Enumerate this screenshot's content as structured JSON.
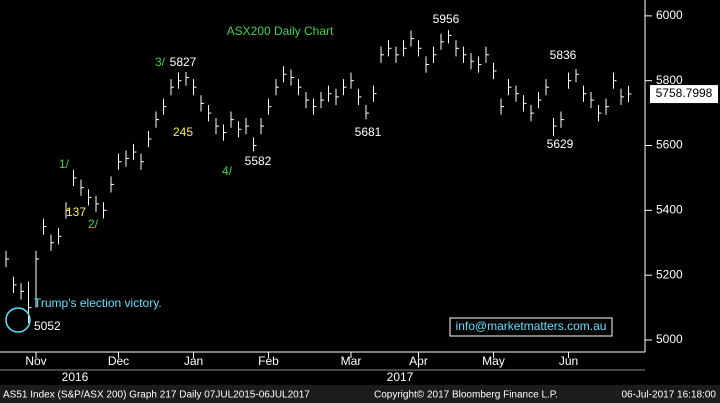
{
  "chart_data": {
    "type": "ohlc",
    "title": "ASX200 Daily Chart",
    "categories": [
      null,
      null,
      null,
      null,
      "Nov",
      null,
      null,
      null,
      null,
      null,
      null,
      null,
      null,
      null,
      null,
      "Dec",
      null,
      null,
      null,
      null,
      null,
      null,
      null,
      null,
      null,
      "Jan",
      null,
      null,
      null,
      null,
      null,
      null,
      null,
      null,
      null,
      "Feb",
      null,
      null,
      null,
      null,
      null,
      null,
      null,
      null,
      null,
      null,
      "Mar",
      null,
      null,
      null,
      null,
      null,
      null,
      null,
      null,
      "Apr",
      null,
      null,
      null,
      null,
      null,
      null,
      null,
      null,
      null,
      "May",
      null,
      null,
      null,
      null,
      null,
      null,
      null,
      null,
      null,
      "Jun",
      null,
      null,
      null,
      null,
      null,
      null,
      null,
      null
    ],
    "year_labels": [
      "2016",
      "2017"
    ],
    "high": [
      5275,
      5195,
      5175,
      5180,
      5275,
      5375,
      5325,
      5345,
      5425,
      5525,
      5495,
      5465,
      5445,
      5425,
      5505,
      5575,
      5585,
      5605,
      5575,
      5645,
      5705,
      5745,
      5805,
      5825,
      5827,
      5805,
      5755,
      5725,
      5685,
      5665,
      5705,
      5675,
      5685,
      5625,
      5685,
      5745,
      5805,
      5845,
      5835,
      5805,
      5765,
      5745,
      5765,
      5785,
      5775,
      5805,
      5825,
      5775,
      5725,
      5785,
      5905,
      5925,
      5905,
      5925,
      5955,
      5925,
      5875,
      5905,
      5945,
      5956,
      5925,
      5905,
      5885,
      5875,
      5905,
      5855,
      5745,
      5805,
      5785,
      5755,
      5725,
      5765,
      5805,
      5685,
      5705,
      5825,
      5836,
      5785,
      5765,
      5725,
      5745,
      5825,
      5775,
      5784
    ],
    "low": [
      5225,
      5145,
      5125,
      5052,
      5100,
      5325,
      5275,
      5295,
      5375,
      5475,
      5445,
      5415,
      5395,
      5375,
      5455,
      5525,
      5535,
      5555,
      5525,
      5595,
      5655,
      5695,
      5755,
      5775,
      5785,
      5755,
      5705,
      5675,
      5635,
      5615,
      5655,
      5625,
      5635,
      5582,
      5635,
      5695,
      5755,
      5795,
      5785,
      5755,
      5715,
      5695,
      5715,
      5735,
      5725,
      5755,
      5775,
      5725,
      5681,
      5735,
      5855,
      5875,
      5855,
      5875,
      5905,
      5875,
      5825,
      5855,
      5895,
      5915,
      5875,
      5855,
      5835,
      5825,
      5855,
      5805,
      5695,
      5755,
      5735,
      5705,
      5675,
      5715,
      5755,
      5629,
      5655,
      5775,
      5795,
      5735,
      5715,
      5675,
      5695,
      5775,
      5725,
      5734
    ],
    "close": [
      5250,
      5170,
      5150,
      5100,
      5250,
      5350,
      5300,
      5320,
      5400,
      5500,
      5470,
      5440,
      5420,
      5400,
      5480,
      5550,
      5560,
      5580,
      5550,
      5620,
      5680,
      5720,
      5780,
      5800,
      5810,
      5780,
      5730,
      5700,
      5660,
      5640,
      5680,
      5650,
      5660,
      5600,
      5660,
      5720,
      5780,
      5820,
      5810,
      5780,
      5740,
      5720,
      5740,
      5760,
      5750,
      5780,
      5800,
      5750,
      5700,
      5760,
      5880,
      5900,
      5880,
      5900,
      5930,
      5900,
      5850,
      5880,
      5920,
      5940,
      5900,
      5880,
      5860,
      5850,
      5880,
      5830,
      5720,
      5780,
      5760,
      5730,
      5700,
      5740,
      5780,
      5660,
      5680,
      5800,
      5820,
      5760,
      5740,
      5700,
      5720,
      5800,
      5750,
      5759
    ],
    "color": "#ffffff",
    "last_price": 5758.7998,
    "ylim": [
      4963,
      6049
    ],
    "yticks": [
      5000,
      5200,
      5400,
      5600,
      5800,
      6000
    ],
    "annotations": [
      "3/",
      "5827",
      "1/",
      "137",
      "2/",
      "245",
      "4/",
      "5582",
      "5681",
      "5956",
      "5836",
      "5629",
      "Trump's election victory.",
      "5052"
    ],
    "watermark": "info@marketmatters.com.au",
    "footer": [
      "AS51 Index (S&P/ASX 200) Graph 217  Daily 07JUL2015-06JUL2017",
      "Copyright© 2017 Bloomberg Finance L.P.",
      "06-Jul-2017 16:18:00"
    ]
  }
}
